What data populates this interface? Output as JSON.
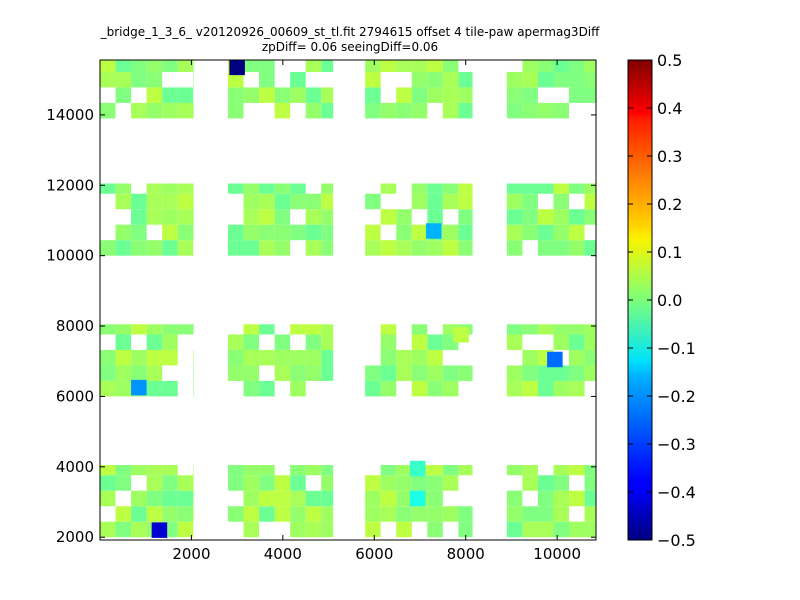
{
  "chart_data": {
    "type": "heatmap",
    "title_lines": [
      "_bridge_1_3_6_ v20120926_00609_st_tl.fit 2794615 offset 4 tile-paw apermag3Diff",
      "zpDiff= 0.06 seeingDiff=0.06"
    ],
    "xlabel": "",
    "ylabel": "",
    "xlim": [
      0,
      10850
    ],
    "ylim": [
      1920,
      15560
    ],
    "x_ticks": [
      2000,
      4000,
      6000,
      8000,
      10000
    ],
    "y_ticks": [
      2000,
      4000,
      6000,
      8000,
      10000,
      12000,
      14000
    ],
    "cell_size": [
      340,
      440
    ],
    "colormap": "jet",
    "colorbar": {
      "vmin": -0.5,
      "vmax": 0.5,
      "ticks": [
        "0.5",
        "0.4",
        "0.3",
        "0.2",
        "0.1",
        "0.0",
        "−0.1",
        "−0.2",
        "−0.3",
        "−0.4",
        "−0.5"
      ]
    },
    "blocks_x": [
      [
        0,
        2050
      ],
      [
        2800,
        5100
      ],
      [
        5800,
        8150
      ],
      [
        8900,
        10850
      ]
    ],
    "blocks_y": [
      [
        2000,
        4050
      ],
      [
        6000,
        8050
      ],
      [
        10000,
        12050
      ],
      [
        13900,
        15560
      ]
    ],
    "background_value": 0.0,
    "outliers": [
      {
        "x": 3000,
        "y": 15350,
        "value": -0.5
      },
      {
        "x": 1300,
        "y": 2200,
        "value": -0.42
      },
      {
        "x": 850,
        "y": 6250,
        "value": -0.23
      },
      {
        "x": 9950,
        "y": 7050,
        "value": -0.27
      },
      {
        "x": 7300,
        "y": 10700,
        "value": -0.2
      },
      {
        "x": 6950,
        "y": 3950,
        "value": -0.07
      },
      {
        "x": 6950,
        "y": 3100,
        "value": -0.1
      },
      {
        "x": 7900,
        "y": 7750,
        "value": 0.06
      }
    ]
  }
}
